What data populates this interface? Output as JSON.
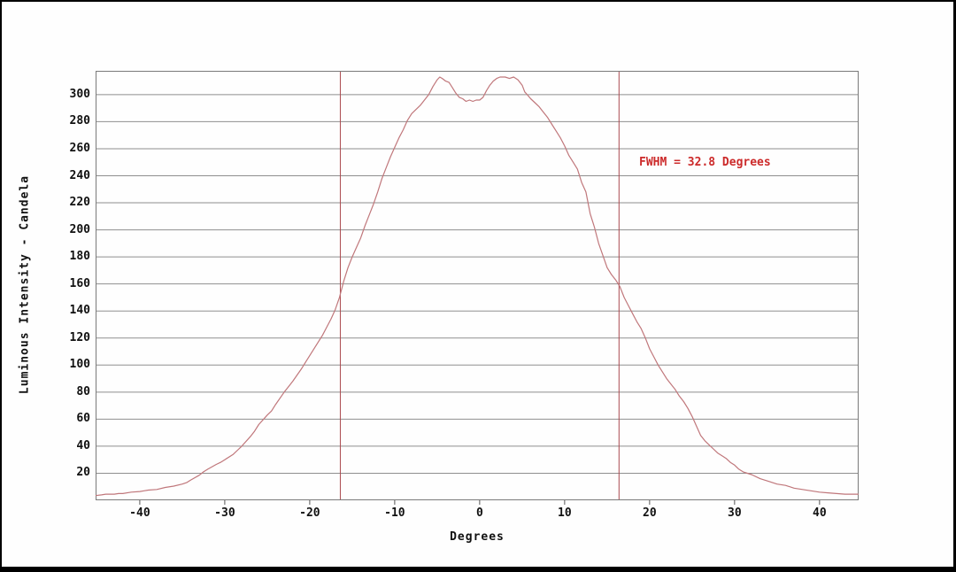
{
  "frame": {
    "outer_background": "#000000",
    "inner_background": "#fefefe"
  },
  "chart_data": {
    "type": "line",
    "title": "",
    "xlabel": "Degrees",
    "ylabel": "Luminous Intensity - Candela",
    "xlim": [
      -45.2,
      44.6
    ],
    "ylim": [
      0,
      317.6
    ],
    "grid": "horizontal",
    "grid_color": "#8f8f8f",
    "frame_color": "#7a7a7a",
    "tick_color": "#555555",
    "x_ticks": [
      {
        "value": -40,
        "label": "-40"
      },
      {
        "value": -30,
        "label": "-30"
      },
      {
        "value": -20,
        "label": "-20"
      },
      {
        "value": -10,
        "label": "-10"
      },
      {
        "value": 0,
        "label": "0"
      },
      {
        "value": 10,
        "label": "10"
      },
      {
        "value": 20,
        "label": "20"
      },
      {
        "value": 30,
        "label": "30"
      },
      {
        "value": 40,
        "label": "40"
      }
    ],
    "y_ticks": [
      {
        "value": 20,
        "label": "20"
      },
      {
        "value": 40,
        "label": "40"
      },
      {
        "value": 60,
        "label": "60"
      },
      {
        "value": 80,
        "label": "80"
      },
      {
        "value": 100,
        "label": "100"
      },
      {
        "value": 120,
        "label": "120"
      },
      {
        "value": 140,
        "label": "140"
      },
      {
        "value": 160,
        "label": "160"
      },
      {
        "value": 180,
        "label": "180"
      },
      {
        "value": 200,
        "label": "200"
      },
      {
        "value": 220,
        "label": "220"
      },
      {
        "value": 240,
        "label": "240"
      },
      {
        "value": 260,
        "label": "260"
      },
      {
        "value": 280,
        "label": "280"
      },
      {
        "value": 300,
        "label": "300"
      }
    ],
    "series": [
      {
        "name": "luminous-intensity-profile",
        "color": "#c0777b",
        "points": [
          [
            -45.2,
            3.5
          ],
          [
            -44.5,
            4
          ],
          [
            -44,
            4.5
          ],
          [
            -43,
            4.5
          ],
          [
            -42.5,
            5
          ],
          [
            -42,
            5
          ],
          [
            -41,
            6
          ],
          [
            -40,
            6.5
          ],
          [
            -39.5,
            7
          ],
          [
            -39,
            7.5
          ],
          [
            -38,
            8
          ],
          [
            -37,
            9.5
          ],
          [
            -36,
            10.5
          ],
          [
            -35,
            12
          ],
          [
            -34.5,
            13
          ],
          [
            -34,
            15
          ],
          [
            -33,
            18.5
          ],
          [
            -32.5,
            21
          ],
          [
            -32,
            23
          ],
          [
            -31,
            26.5
          ],
          [
            -30.5,
            28
          ],
          [
            -30,
            30
          ],
          [
            -29,
            34
          ],
          [
            -28.5,
            37
          ],
          [
            -28,
            40
          ],
          [
            -27,
            47
          ],
          [
            -26.5,
            51
          ],
          [
            -26,
            56
          ],
          [
            -25,
            63
          ],
          [
            -24.5,
            66
          ],
          [
            -24,
            71
          ],
          [
            -23,
            80
          ],
          [
            -22.5,
            84
          ],
          [
            -22,
            88
          ],
          [
            -21,
            97
          ],
          [
            -20.5,
            102
          ],
          [
            -20,
            107
          ],
          [
            -19,
            117
          ],
          [
            -18.5,
            122
          ],
          [
            -18,
            128
          ],
          [
            -17.5,
            134
          ],
          [
            -17,
            141
          ],
          [
            -16.5,
            150
          ],
          [
            -16,
            162
          ],
          [
            -15.5,
            172
          ],
          [
            -15,
            180
          ],
          [
            -14.5,
            187
          ],
          [
            -14,
            194
          ],
          [
            -13.5,
            203
          ],
          [
            -13,
            211
          ],
          [
            -12.5,
            219
          ],
          [
            -12,
            228
          ],
          [
            -11.5,
            238
          ],
          [
            -11,
            246
          ],
          [
            -10.5,
            254
          ],
          [
            -10,
            261
          ],
          [
            -9.5,
            268
          ],
          [
            -9,
            274
          ],
          [
            -8.5,
            281
          ],
          [
            -8,
            286
          ],
          [
            -7.5,
            289
          ],
          [
            -7,
            292
          ],
          [
            -6.5,
            296
          ],
          [
            -6,
            300
          ],
          [
            -5.5,
            306
          ],
          [
            -5,
            311
          ],
          [
            -4.7,
            313
          ],
          [
            -4.4,
            312
          ],
          [
            -4,
            310
          ],
          [
            -3.6,
            309
          ],
          [
            -3.2,
            305
          ],
          [
            -2.8,
            301
          ],
          [
            -2.4,
            298
          ],
          [
            -2,
            297
          ],
          [
            -1.6,
            295
          ],
          [
            -1.2,
            296
          ],
          [
            -0.8,
            295
          ],
          [
            -0.4,
            296
          ],
          [
            0,
            296
          ],
          [
            0.4,
            298
          ],
          [
            0.8,
            303
          ],
          [
            1.2,
            307
          ],
          [
            1.6,
            310
          ],
          [
            2,
            312
          ],
          [
            2.4,
            313
          ],
          [
            3,
            313
          ],
          [
            3.5,
            312
          ],
          [
            4,
            313
          ],
          [
            4.5,
            311
          ],
          [
            5,
            307
          ],
          [
            5.3,
            302
          ],
          [
            5.6,
            300
          ],
          [
            6,
            297
          ],
          [
            6.5,
            294
          ],
          [
            7,
            291
          ],
          [
            7.5,
            287
          ],
          [
            8,
            283
          ],
          [
            8.5,
            278
          ],
          [
            9,
            273
          ],
          [
            9.5,
            268
          ],
          [
            10,
            262
          ],
          [
            10.5,
            255
          ],
          [
            11,
            250
          ],
          [
            11.5,
            245
          ],
          [
            12,
            235
          ],
          [
            12.5,
            228
          ],
          [
            13,
            212
          ],
          [
            13.5,
            202
          ],
          [
            14,
            190
          ],
          [
            14.5,
            181
          ],
          [
            15,
            172
          ],
          [
            15.5,
            167
          ],
          [
            16,
            163
          ],
          [
            16.5,
            158
          ],
          [
            17,
            150
          ],
          [
            17.5,
            144
          ],
          [
            18,
            138
          ],
          [
            18.5,
            132
          ],
          [
            19,
            127
          ],
          [
            19.5,
            120
          ],
          [
            20,
            112
          ],
          [
            20.5,
            106
          ],
          [
            21,
            100
          ],
          [
            21.5,
            95
          ],
          [
            22,
            90
          ],
          [
            22.5,
            86
          ],
          [
            23,
            82
          ],
          [
            23.5,
            77
          ],
          [
            24,
            73
          ],
          [
            24.5,
            68
          ],
          [
            25,
            62
          ],
          [
            25.5,
            55
          ],
          [
            26,
            48
          ],
          [
            26.5,
            44
          ],
          [
            27,
            41
          ],
          [
            27.5,
            38
          ],
          [
            28,
            35
          ],
          [
            28.5,
            33
          ],
          [
            29,
            31
          ],
          [
            29.5,
            28
          ],
          [
            30,
            26
          ],
          [
            30.5,
            23
          ],
          [
            31,
            21
          ],
          [
            31.5,
            20
          ],
          [
            32,
            19
          ],
          [
            33,
            16
          ],
          [
            33.5,
            15
          ],
          [
            34,
            14
          ],
          [
            35,
            12
          ],
          [
            36,
            11
          ],
          [
            36.5,
            10
          ],
          [
            37,
            9
          ],
          [
            38,
            8
          ],
          [
            39,
            7
          ],
          [
            40,
            6
          ],
          [
            41,
            5.5
          ],
          [
            42,
            5
          ],
          [
            43,
            4.5
          ],
          [
            44,
            4.5
          ],
          [
            44.6,
            4.5
          ]
        ]
      }
    ],
    "fwhm_marker_lines": {
      "x_values": [
        -16.4,
        16.4
      ],
      "color": "#aa4a4f"
    },
    "annotation": {
      "text": "FWHM = 32.8 Degrees",
      "color": "#cc2a2a",
      "fwhm_degrees": 32.8
    }
  }
}
